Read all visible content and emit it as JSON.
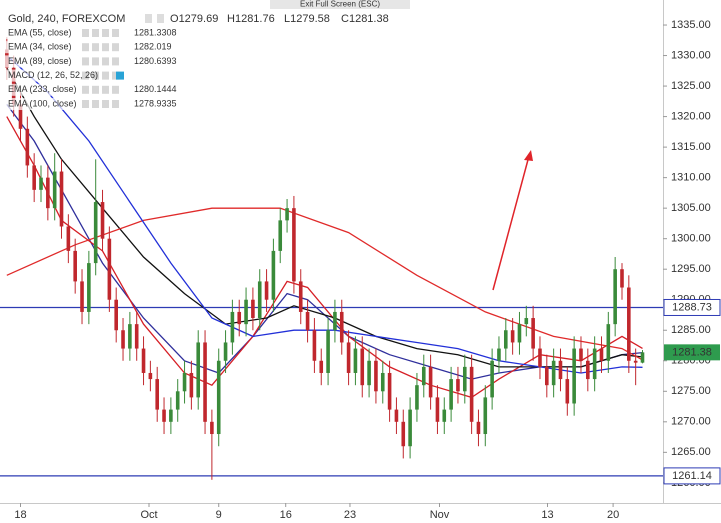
{
  "chart_data": {
    "type": "candlestick",
    "title": "Gold, 240, FOREXCOM",
    "ohlc_prefixes": [
      "O",
      "H",
      "L",
      "C"
    ],
    "banner": "Exit Full Screen (ESC)",
    "hidden_studies": [
      "MACD (12, 26, 52, 26)"
    ],
    "xlim": [
      -1,
      96
    ],
    "ylim": [
      1256.7,
      1339.1
    ],
    "xticks": [
      {
        "value": 2,
        "label": "18"
      },
      {
        "value": 20.8,
        "label": "Oct"
      },
      {
        "value": 31,
        "label": "9"
      },
      {
        "value": 40.8,
        "label": "16"
      },
      {
        "value": 50.2,
        "label": "23"
      },
      {
        "value": 63.3,
        "label": "Nov"
      },
      {
        "value": 79.1,
        "label": "13"
      },
      {
        "value": 88.7,
        "label": "20"
      }
    ],
    "yticks": [
      {
        "value": 1260,
        "label": "1260.00"
      },
      {
        "value": 1265,
        "label": "1265.00"
      },
      {
        "value": 1270,
        "label": "1270.00"
      },
      {
        "value": 1275,
        "label": "1275.00"
      },
      {
        "value": 1280,
        "label": "1280.00"
      },
      {
        "value": 1285,
        "label": "1285.00"
      },
      {
        "value": 1290,
        "label": "1290.00"
      },
      {
        "value": 1295,
        "label": "1295.00"
      },
      {
        "value": 1300,
        "label": "1300.00"
      },
      {
        "value": 1305,
        "label": "1305.00"
      },
      {
        "value": 1310,
        "label": "1310.00"
      },
      {
        "value": 1315,
        "label": "1315.00"
      },
      {
        "value": 1320,
        "label": "1320.00"
      },
      {
        "value": 1325,
        "label": "1325.00"
      },
      {
        "value": 1330,
        "label": "1330.00"
      },
      {
        "value": 1335,
        "label": "1335.00"
      }
    ],
    "grid": false,
    "up_color": "#3a8a3a",
    "down_color": "#c0272d",
    "last_price_color": "#2e9b4e",
    "candles": {
      "open": [
        1331,
        1328,
        1322,
        1318,
        1312,
        1308,
        1310,
        1305,
        1311,
        1302,
        1298,
        1293,
        1288,
        1296,
        1306,
        1300,
        1290,
        1285,
        1282,
        1286,
        1282,
        1278,
        1277,
        1272,
        1270,
        1272,
        1275,
        1278,
        1274,
        1283,
        1270,
        1268,
        1280,
        1283,
        1288,
        1286,
        1290,
        1287,
        1293,
        1290,
        1298,
        1303,
        1305,
        1293,
        1288,
        1285,
        1280,
        1278,
        1285,
        1288,
        1283,
        1278,
        1282,
        1276,
        1280,
        1275,
        1278,
        1272,
        1270,
        1266,
        1272,
        1276,
        1279,
        1274,
        1270,
        1272,
        1277,
        1275,
        1279,
        1270,
        1268,
        1274,
        1280,
        1282,
        1285,
        1283,
        1286,
        1287,
        1282,
        1279,
        1276,
        1280,
        1277,
        1273,
        1282,
        1280,
        1277,
        1282,
        1280,
        1286,
        1295,
        1292,
        1280,
        1279.69
      ],
      "high": [
        1333,
        1330,
        1324,
        1320,
        1314,
        1312,
        1312,
        1314,
        1313,
        1304,
        1300,
        1295,
        1298,
        1313,
        1308,
        1302,
        1292,
        1287,
        1288,
        1288,
        1284,
        1280,
        1279,
        1274,
        1274,
        1277,
        1280,
        1280,
        1285,
        1285,
        1272,
        1282,
        1285,
        1290,
        1290,
        1292,
        1292,
        1295,
        1295,
        1300,
        1305,
        1306.5,
        1307,
        1295,
        1290,
        1287,
        1282,
        1287,
        1290,
        1290,
        1285,
        1284,
        1284,
        1282,
        1282,
        1280,
        1280,
        1274,
        1272,
        1274,
        1278,
        1281,
        1281,
        1276,
        1274,
        1279,
        1279,
        1281,
        1281,
        1272,
        1276,
        1282,
        1284,
        1287,
        1287,
        1288,
        1289,
        1289,
        1284,
        1281,
        1282,
        1282,
        1279,
        1284,
        1284,
        1282,
        1284,
        1284,
        1288,
        1297,
        1296,
        1294,
        1282,
        1281.76
      ],
      "low": [
        1326,
        1320,
        1316,
        1310,
        1306,
        1306,
        1303,
        1303,
        1300,
        1296,
        1291,
        1286,
        1286,
        1294,
        1298,
        1288,
        1283,
        1280,
        1280,
        1280,
        1276,
        1275,
        1270,
        1268,
        1268,
        1270,
        1273,
        1272,
        1272,
        1268,
        1260.5,
        1266,
        1278,
        1281,
        1284,
        1284,
        1285,
        1285,
        1288,
        1288,
        1296,
        1301,
        1291,
        1286,
        1283,
        1278,
        1276,
        1276,
        1283,
        1281,
        1276,
        1276,
        1274,
        1274,
        1273,
        1273,
        1270,
        1268,
        1264,
        1264,
        1270,
        1274,
        1272,
        1268,
        1268,
        1270,
        1273,
        1273,
        1268,
        1266,
        1266,
        1272,
        1278,
        1280,
        1281,
        1281,
        1284,
        1280,
        1277,
        1274,
        1274,
        1275,
        1271,
        1271,
        1278,
        1275,
        1275,
        1278,
        1278,
        1284,
        1290,
        1278,
        1276,
        1279.58
      ],
      "close": [
        1328,
        1322,
        1318,
        1312,
        1308,
        1310,
        1305,
        1311,
        1302,
        1298,
        1293,
        1288,
        1296,
        1306,
        1300,
        1290,
        1285,
        1282,
        1286,
        1282,
        1278,
        1277,
        1272,
        1270,
        1272,
        1275,
        1278,
        1274,
        1283,
        1270,
        1268,
        1280,
        1283,
        1288,
        1286,
        1290,
        1287,
        1293,
        1290,
        1298,
        1303,
        1305,
        1293,
        1288,
        1285,
        1280,
        1278,
        1285,
        1288,
        1283,
        1278,
        1282,
        1276,
        1280,
        1275,
        1278,
        1272,
        1270,
        1266,
        1272,
        1276,
        1279,
        1274,
        1270,
        1272,
        1277,
        1275,
        1279,
        1270,
        1268,
        1274,
        1280,
        1282,
        1285,
        1283,
        1286,
        1287,
        1282,
        1279,
        1276,
        1280,
        1277,
        1273,
        1282,
        1280,
        1277,
        1282,
        1280,
        1286,
        1295,
        1292,
        1280,
        1279.69,
        1281.38
      ]
    },
    "series": [
      {
        "name": "EMA (55, close)",
        "color": "#2f2f9c",
        "x": [
          0,
          4,
          8,
          14,
          20,
          26,
          31,
          36,
          41,
          44,
          50,
          56,
          62,
          68,
          72,
          78,
          84,
          90,
          93
        ],
        "values": [
          1322,
          1316,
          1308,
          1296,
          1287,
          1280,
          1278,
          1284,
          1291,
          1290,
          1284,
          1281,
          1279,
          1277,
          1278,
          1279,
          1279,
          1281,
          1281.3308
        ]
      },
      {
        "name": "EMA (34, close)",
        "color": "#d61f26",
        "x": [
          0,
          4,
          8,
          14,
          20,
          26,
          30,
          36,
          41,
          44,
          50,
          56,
          62,
          68,
          72,
          78,
          84,
          90,
          93
        ],
        "values": [
          1320,
          1312,
          1303,
          1298,
          1286,
          1278,
          1276,
          1284,
          1293,
          1292,
          1284,
          1279,
          1276,
          1274,
          1277,
          1281,
          1280,
          1284,
          1282.019
        ]
      },
      {
        "name": "EMA (89, close)",
        "color": "#111111",
        "x": [
          0,
          4,
          8,
          14,
          20,
          26,
          32,
          38,
          42,
          48,
          54,
          60,
          66,
          72,
          78,
          84,
          90,
          93
        ],
        "values": [
          1328,
          1320,
          1313,
          1305,
          1297,
          1291,
          1286,
          1287,
          1289,
          1287,
          1284,
          1282,
          1281,
          1279,
          1279,
          1279,
          1281,
          1280.6393
        ]
      },
      {
        "name": "EMA (233, close)",
        "color": "#e02a2a",
        "x": [
          0,
          10,
          20,
          30,
          40,
          50,
          60,
          70,
          80,
          90,
          93
        ],
        "values": [
          1294,
          1299,
          1303,
          1305,
          1305,
          1301,
          1294,
          1288,
          1284,
          1282,
          1280.1444
        ]
      },
      {
        "name": "EMA (100, close)",
        "color": "#2230d8",
        "x": [
          0,
          6,
          12,
          18,
          24,
          30,
          36,
          42,
          48,
          54,
          60,
          66,
          72,
          78,
          84,
          90,
          93
        ],
        "values": [
          1330,
          1324,
          1316,
          1306,
          1296,
          1287,
          1284,
          1285,
          1285,
          1284,
          1283,
          1282,
          1280,
          1279,
          1278,
          1279,
          1278.9335
        ]
      }
    ],
    "levels": [
      {
        "value": 1288.73,
        "color": "#2d3bb4"
      },
      {
        "value": 1261.14,
        "color": "#2d3bb4"
      }
    ]
  }
}
